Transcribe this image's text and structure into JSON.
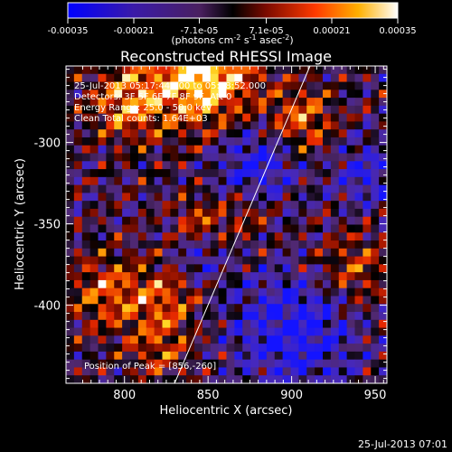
{
  "chart_data": {
    "type": "heatmap",
    "title": "Reconstructed RHESSI Image",
    "xlabel": "Heliocentric X (arcsec)",
    "ylabel": "Heliocentric Y (arcsec)",
    "xlim": [
      765,
      957
    ],
    "ylim": [
      -448,
      -253
    ],
    "x_ticks": [
      800,
      850,
      900,
      950
    ],
    "y_ticks": [
      -300,
      -350,
      -400
    ],
    "colorbar": {
      "label_parts": [
        "(photons cm",
        "-2",
        " s",
        "-1",
        " asec",
        "-2",
        ")"
      ],
      "range": [
        -0.00035,
        0.00035
      ],
      "ticks": [
        "-0.00035",
        "-0.00021",
        "-7.1e-05",
        "7.1e-05",
        "0.00021",
        "0.00035"
      ],
      "tick_values": [
        -0.00035,
        -0.00021,
        -7.1e-05,
        7.1e-05,
        0.00021,
        0.00035
      ]
    },
    "annotations": [
      "25-Jul-2013 05:17:44.000 to 05:18:52.000",
      "Detectors: 3F 5F 6F 7F 8F 9F, Att 0",
      "Energy Range: 25.0 - 50.0 keV",
      "Clean     Total counts: 1.64E+03"
    ],
    "peak_label": "Position of Peak = [856,-260]",
    "peak": [
      856,
      -260
    ],
    "limb_line": [
      [
        830,
        -448
      ],
      [
        911,
        -253
      ]
    ],
    "grid": false
  },
  "timestamp": "25-Jul-2013 07:01"
}
